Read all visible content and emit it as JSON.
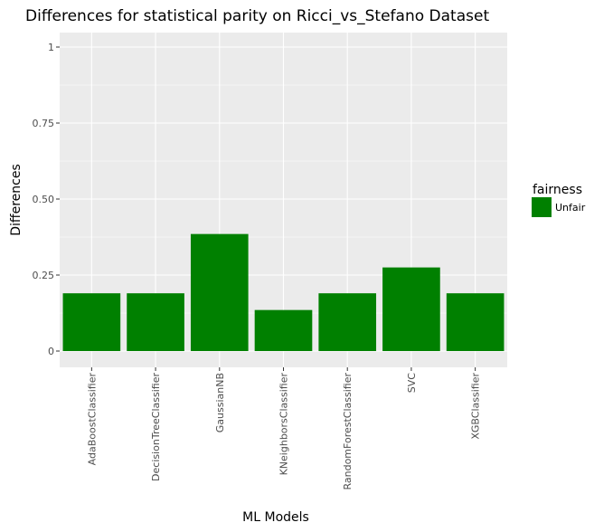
{
  "chart_data": {
    "type": "bar",
    "title": "Differences for statistical parity on Ricci_vs_Stefano Dataset",
    "xlabel": "ML Models",
    "ylabel": "Differences",
    "categories": [
      "AdaBoostClassifier",
      "DecisionTreeClassifier",
      "GaussianNB",
      "KNeighborsClassifier",
      "RandomForestClassifier",
      "SVC",
      "XGBClassifier"
    ],
    "values": [
      0.19,
      0.19,
      0.385,
      0.135,
      0.19,
      0.275,
      0.19
    ],
    "ylim": [
      0,
      1
    ],
    "yticks": [
      0,
      0.25,
      0.5,
      0.75,
      1
    ],
    "ytick_labels": [
      "0",
      "0.25",
      "0.50",
      "0.75",
      "1"
    ],
    "grid": true,
    "legend": {
      "title": "fairness",
      "placement": "right",
      "entries": [
        {
          "label": "Unfair",
          "color": "#008000"
        }
      ]
    },
    "colors": {
      "bar": "#008000",
      "panel": "#ebebeb",
      "grid_major": "#ffffff"
    }
  }
}
